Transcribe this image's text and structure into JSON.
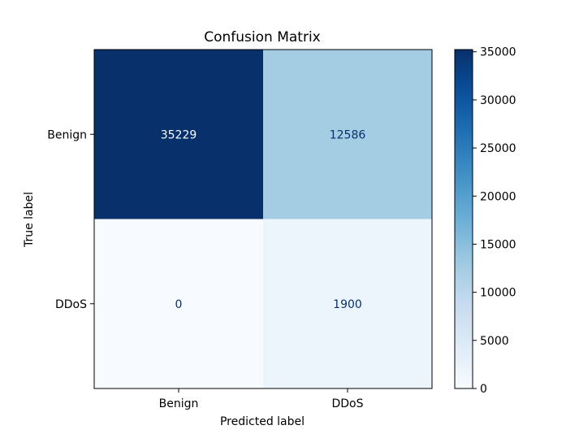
{
  "chart_data": {
    "type": "heatmap",
    "title": "Confusion Matrix",
    "xlabel": "Predicted label",
    "ylabel": "True label",
    "x_categories": [
      "Benign",
      "DDoS"
    ],
    "y_categories": [
      "Benign",
      "DDoS"
    ],
    "values": [
      [
        35229,
        12586
      ],
      [
        0,
        1900
      ]
    ],
    "colormap": "Blues",
    "colorbar": {
      "min": 0,
      "max": 35229,
      "ticks": [
        0,
        5000,
        10000,
        15000,
        20000,
        25000,
        30000,
        35000
      ]
    },
    "grid": false
  }
}
